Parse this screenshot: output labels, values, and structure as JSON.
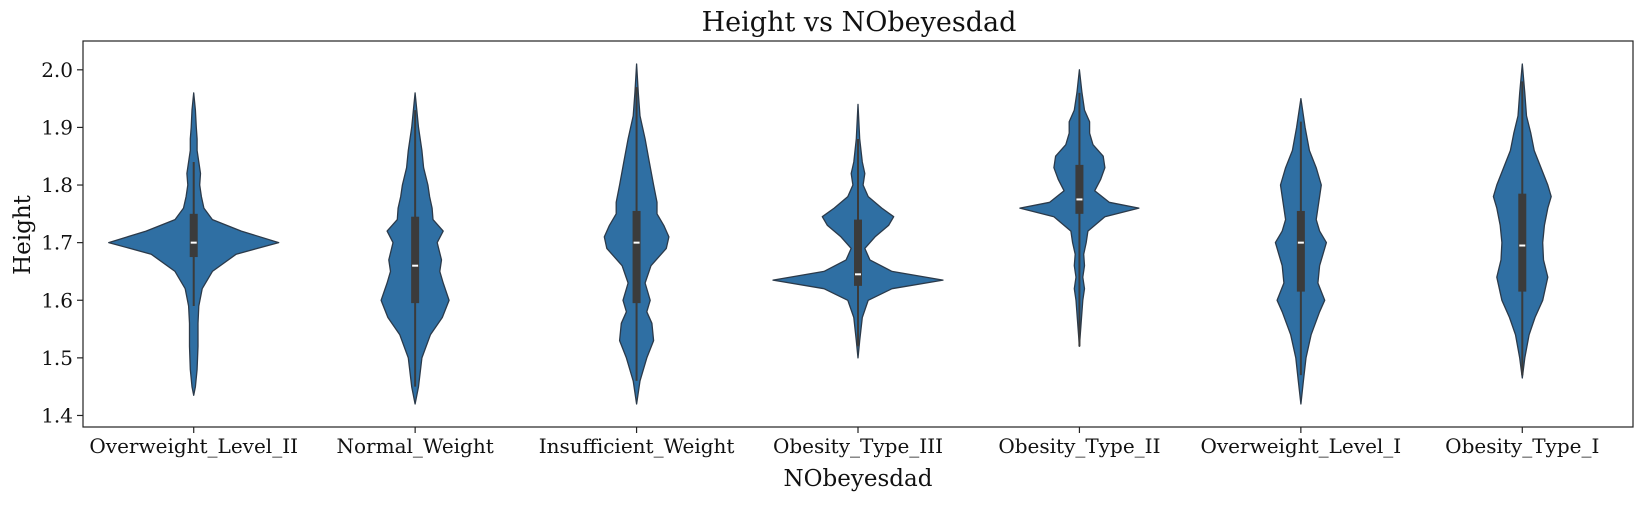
{
  "chart_data": {
    "type": "violin",
    "title": "Height vs NObeyesdad",
    "xlabel": "NObeyesdad",
    "ylabel": "Height",
    "ylim": [
      1.38,
      2.05
    ],
    "yticks": [
      1.4,
      1.5,
      1.6,
      1.7,
      1.8,
      1.9,
      2.0
    ],
    "ytick_labels": [
      "1.4",
      "1.5",
      "1.6",
      "1.7",
      "1.8",
      "1.9",
      "2.0"
    ],
    "grid": false,
    "legend": "none",
    "color": "#2f6fa3",
    "box_color": "#3b3b3b",
    "median_color": "#ffffff",
    "categories": [
      "Overweight_Level_II",
      "Normal_Weight",
      "Insufficient_Weight",
      "Obesity_Type_III",
      "Obesity_Type_II",
      "Overweight_Level_I",
      "Obesity_Type_I"
    ],
    "violins": [
      {
        "category": "Overweight_Level_II",
        "min": 1.44,
        "q1": 1.675,
        "median": 1.7,
        "q3": 1.75,
        "max": 1.96,
        "whisker_low": 1.59,
        "whisker_high": 1.84,
        "profile": [
          [
            1.435,
            0
          ],
          [
            1.45,
            0.02
          ],
          [
            1.48,
            0.04
          ],
          [
            1.52,
            0.05
          ],
          [
            1.56,
            0.05
          ],
          [
            1.59,
            0.06
          ],
          [
            1.62,
            0.1
          ],
          [
            1.65,
            0.22
          ],
          [
            1.68,
            0.5
          ],
          [
            1.7,
            1.0
          ],
          [
            1.72,
            0.56
          ],
          [
            1.74,
            0.22
          ],
          [
            1.76,
            0.12
          ],
          [
            1.78,
            0.09
          ],
          [
            1.8,
            0.07
          ],
          [
            1.82,
            0.08
          ],
          [
            1.84,
            0.06
          ],
          [
            1.86,
            0.04
          ],
          [
            1.88,
            0.04
          ],
          [
            1.9,
            0.03
          ],
          [
            1.93,
            0.02
          ],
          [
            1.96,
            0
          ]
        ]
      },
      {
        "category": "Normal_Weight",
        "min": 1.42,
        "q1": 1.595,
        "median": 1.66,
        "q3": 1.745,
        "max": 1.96,
        "whisker_low": 1.45,
        "whisker_high": 1.93,
        "profile": [
          [
            1.42,
            0
          ],
          [
            1.45,
            0.04
          ],
          [
            1.5,
            0.08
          ],
          [
            1.54,
            0.18
          ],
          [
            1.57,
            0.32
          ],
          [
            1.6,
            0.4
          ],
          [
            1.63,
            0.33
          ],
          [
            1.65,
            0.29
          ],
          [
            1.67,
            0.31
          ],
          [
            1.7,
            0.26
          ],
          [
            1.72,
            0.33
          ],
          [
            1.74,
            0.21
          ],
          [
            1.76,
            0.2
          ],
          [
            1.78,
            0.17
          ],
          [
            1.8,
            0.15
          ],
          [
            1.83,
            0.1
          ],
          [
            1.86,
            0.08
          ],
          [
            1.9,
            0.04
          ],
          [
            1.93,
            0.02
          ],
          [
            1.96,
            0
          ]
        ]
      },
      {
        "category": "Insufficient_Weight",
        "min": 1.42,
        "q1": 1.595,
        "median": 1.7,
        "q3": 1.755,
        "max": 2.01,
        "whisker_low": 1.46,
        "whisker_high": 1.97,
        "profile": [
          [
            1.42,
            0
          ],
          [
            1.46,
            0.04
          ],
          [
            1.5,
            0.12
          ],
          [
            1.53,
            0.2
          ],
          [
            1.56,
            0.18
          ],
          [
            1.58,
            0.12
          ],
          [
            1.6,
            0.16
          ],
          [
            1.63,
            0.1
          ],
          [
            1.66,
            0.17
          ],
          [
            1.69,
            0.35
          ],
          [
            1.71,
            0.38
          ],
          [
            1.73,
            0.32
          ],
          [
            1.75,
            0.24
          ],
          [
            1.77,
            0.24
          ],
          [
            1.8,
            0.2
          ],
          [
            1.84,
            0.15
          ],
          [
            1.88,
            0.1
          ],
          [
            1.92,
            0.04
          ],
          [
            1.96,
            0.02
          ],
          [
            2.01,
            0
          ]
        ]
      },
      {
        "category": "Obesity_Type_III",
        "min": 1.5,
        "q1": 1.625,
        "median": 1.645,
        "q3": 1.74,
        "max": 1.94,
        "whisker_low": 1.52,
        "whisker_high": 1.88,
        "profile": [
          [
            1.5,
            0
          ],
          [
            1.53,
            0.02
          ],
          [
            1.57,
            0.05
          ],
          [
            1.6,
            0.12
          ],
          [
            1.62,
            0.4
          ],
          [
            1.635,
            1.0
          ],
          [
            1.65,
            0.4
          ],
          [
            1.67,
            0.14
          ],
          [
            1.69,
            0.08
          ],
          [
            1.71,
            0.2
          ],
          [
            1.73,
            0.36
          ],
          [
            1.745,
            0.42
          ],
          [
            1.76,
            0.28
          ],
          [
            1.78,
            0.12
          ],
          [
            1.8,
            0.06
          ],
          [
            1.82,
            0.08
          ],
          [
            1.84,
            0.05
          ],
          [
            1.88,
            0.02
          ],
          [
            1.94,
            0
          ]
        ]
      },
      {
        "category": "Obesity_Type_II",
        "min": 1.52,
        "q1": 1.75,
        "median": 1.775,
        "q3": 1.835,
        "max": 2.0,
        "whisker_low": 1.52,
        "whisker_high": 1.96,
        "profile": [
          [
            1.52,
            0
          ],
          [
            1.56,
            0.02
          ],
          [
            1.6,
            0.04
          ],
          [
            1.62,
            0.06
          ],
          [
            1.64,
            0.04
          ],
          [
            1.66,
            0.06
          ],
          [
            1.68,
            0.05
          ],
          [
            1.7,
            0.08
          ],
          [
            1.72,
            0.1
          ],
          [
            1.745,
            0.3
          ],
          [
            1.76,
            0.7
          ],
          [
            1.77,
            0.35
          ],
          [
            1.79,
            0.18
          ],
          [
            1.81,
            0.25
          ],
          [
            1.83,
            0.3
          ],
          [
            1.85,
            0.28
          ],
          [
            1.87,
            0.16
          ],
          [
            1.89,
            0.12
          ],
          [
            1.91,
            0.12
          ],
          [
            1.93,
            0.06
          ],
          [
            1.96,
            0.03
          ],
          [
            2.0,
            0
          ]
        ]
      },
      {
        "category": "Overweight_Level_I",
        "min": 1.42,
        "q1": 1.615,
        "median": 1.7,
        "q3": 1.755,
        "max": 1.95,
        "whisker_low": 1.47,
        "whisker_high": 1.91,
        "profile": [
          [
            1.42,
            0
          ],
          [
            1.46,
            0.03
          ],
          [
            1.5,
            0.06
          ],
          [
            1.54,
            0.12
          ],
          [
            1.58,
            0.22
          ],
          [
            1.6,
            0.28
          ],
          [
            1.63,
            0.2
          ],
          [
            1.66,
            0.22
          ],
          [
            1.68,
            0.26
          ],
          [
            1.7,
            0.3
          ],
          [
            1.72,
            0.22
          ],
          [
            1.74,
            0.18
          ],
          [
            1.76,
            0.2
          ],
          [
            1.78,
            0.22
          ],
          [
            1.8,
            0.24
          ],
          [
            1.83,
            0.18
          ],
          [
            1.86,
            0.1
          ],
          [
            1.9,
            0.05
          ],
          [
            1.95,
            0
          ]
        ]
      },
      {
        "category": "Obesity_Type_I",
        "min": 1.47,
        "q1": 1.615,
        "median": 1.695,
        "q3": 1.785,
        "max": 2.01,
        "whisker_low": 1.47,
        "whisker_high": 1.98,
        "profile": [
          [
            1.465,
            0
          ],
          [
            1.5,
            0.03
          ],
          [
            1.54,
            0.08
          ],
          [
            1.57,
            0.15
          ],
          [
            1.6,
            0.24
          ],
          [
            1.64,
            0.3
          ],
          [
            1.67,
            0.25
          ],
          [
            1.7,
            0.24
          ],
          [
            1.73,
            0.26
          ],
          [
            1.76,
            0.3
          ],
          [
            1.78,
            0.34
          ],
          [
            1.8,
            0.3
          ],
          [
            1.83,
            0.22
          ],
          [
            1.86,
            0.14
          ],
          [
            1.89,
            0.1
          ],
          [
            1.92,
            0.05
          ],
          [
            1.96,
            0.03
          ],
          [
            2.01,
            0
          ]
        ]
      }
    ]
  }
}
